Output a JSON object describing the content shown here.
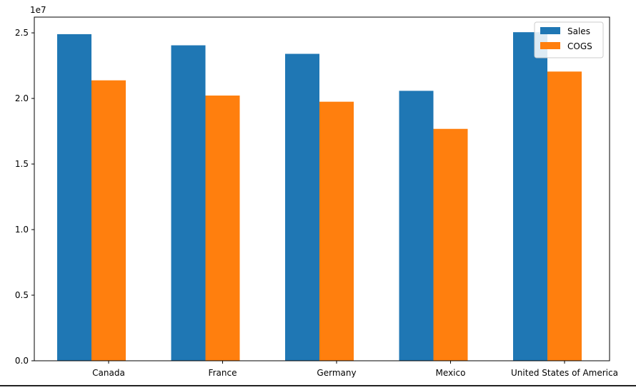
{
  "chart_data": {
    "type": "bar",
    "categories": [
      "Canada",
      "France",
      "Germany",
      "Mexico",
      "United States of America"
    ],
    "series": [
      {
        "name": "Sales",
        "values": [
          24900000,
          24050000,
          23400000,
          20580000,
          25050000
        ],
        "color": "#1f77b4"
      },
      {
        "name": "COGS",
        "values": [
          21380000,
          20220000,
          19750000,
          17680000,
          22050000
        ],
        "color": "#ff7f0e"
      }
    ],
    "yticks": [
      {
        "value": 0,
        "label": "0.0"
      },
      {
        "value": 5000000,
        "label": "0.5"
      },
      {
        "value": 10000000,
        "label": "1.0"
      },
      {
        "value": 15000000,
        "label": "1.5"
      },
      {
        "value": 20000000,
        "label": "2.0"
      },
      {
        "value": 25000000,
        "label": "2.5"
      }
    ],
    "y_offset_label": "1e7",
    "ylim": [
      0,
      26200000
    ],
    "title": "",
    "xlabel": "",
    "ylabel": "",
    "grid": false,
    "legend": "top-right"
  }
}
